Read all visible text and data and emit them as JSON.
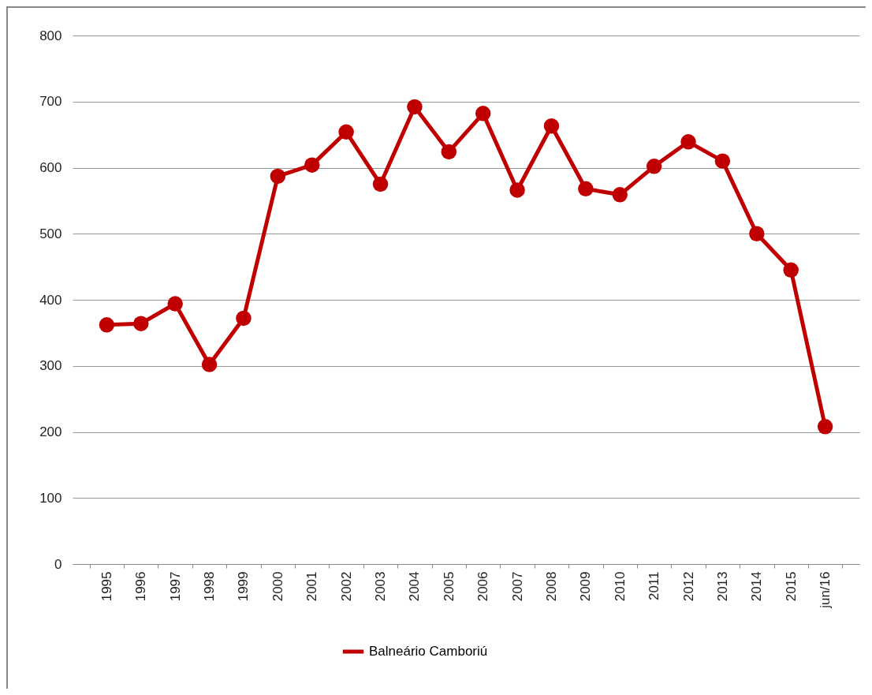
{
  "chart_data": {
    "type": "line",
    "categories": [
      "1995",
      "1996",
      "1997",
      "1998",
      "1999",
      "2000",
      "2001",
      "2002",
      "2003",
      "2004",
      "2005",
      "2006",
      "2007",
      "2008",
      "2009",
      "2010",
      "2011",
      "2012",
      "2013",
      "2014",
      "2015",
      "jun/16"
    ],
    "series": [
      {
        "name": "Balneário Camboriú",
        "color": "#c00000",
        "values": [
          362,
          364,
          394,
          302,
          372,
          587,
          604,
          654,
          575,
          692,
          624,
          682,
          566,
          663,
          568,
          559,
          602,
          639,
          610,
          500,
          445,
          208
        ]
      }
    ],
    "ylim": [
      0,
      800
    ],
    "yticks": [
      0,
      100,
      200,
      300,
      400,
      500,
      600,
      700,
      800
    ],
    "grid": "y",
    "legend": "bottom",
    "marker": "circle",
    "line_style": "solid"
  }
}
